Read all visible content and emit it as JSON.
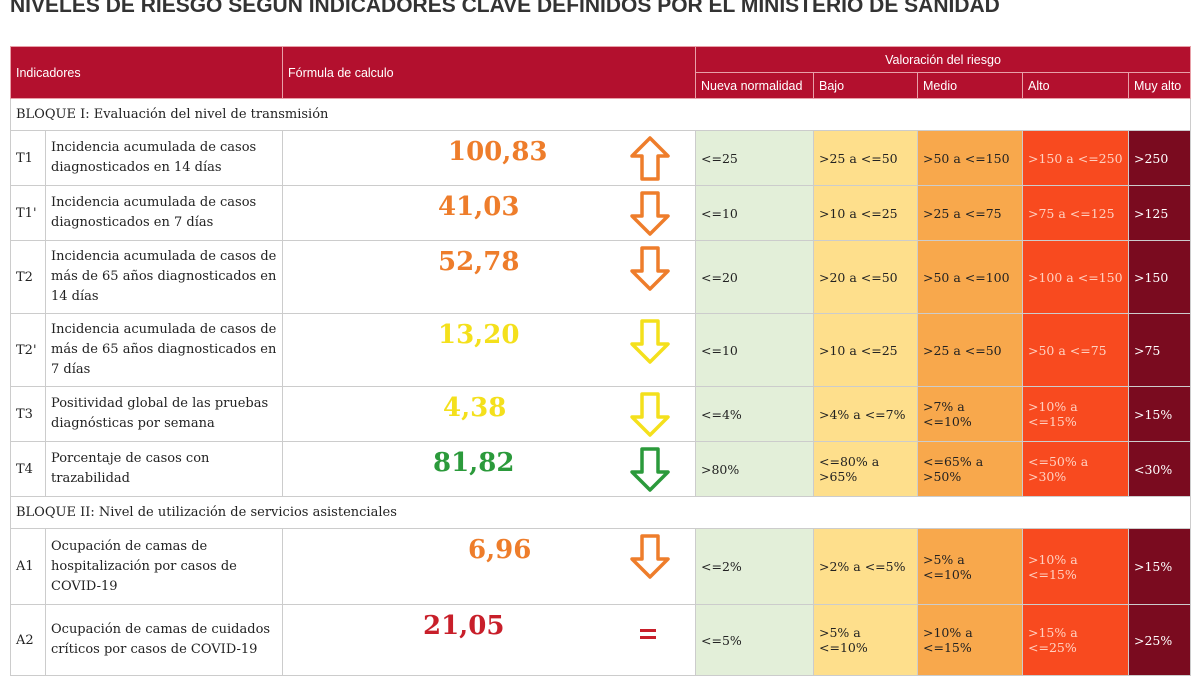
{
  "title": "NIVELES DE RIESGO SEGÚN INDICADORES CLAVE DEFINIDOS POR EL MINISTERIO DE SANIDAD",
  "table": {
    "headers": {
      "indicadores": "Indicadores",
      "formula": "Fórmula de calculo",
      "valoracion": "Valoración del riesgo",
      "levels": [
        "Nueva normalidad",
        "Bajo",
        "Medio",
        "Alto",
        "Muy alto"
      ]
    },
    "blocks": [
      {
        "title": "BLOQUE I: Evaluación del nivel de transmisión",
        "rows": [
          {
            "code": "T1",
            "indicator": "Incidencia acumulada de casos diagnosticados en 14 días",
            "value": "100,83",
            "levels": [
              "<=25",
              ">25 a <=50",
              ">50 a <=150",
              ">150 a <=250",
              ">250"
            ]
          },
          {
            "code": "T1'",
            "indicator": "Incidencia acumulada de casos diagnosticados en 7 días",
            "value": "41,03",
            "levels": [
              "<=10",
              ">10 a <=25",
              ">25 a <=75",
              ">75 a <=125",
              ">125"
            ]
          },
          {
            "code": "T2",
            "indicator": "Incidencia acumulada de casos de más de 65 años diagnosticados en 14 días",
            "value": "52,78",
            "levels": [
              "<=20",
              ">20 a <=50",
              ">50 a <=100",
              ">100 a <=150",
              ">150"
            ]
          },
          {
            "code": "T2'",
            "indicator": "Incidencia acumulada de casos de más de 65 años diagnosticados en 7 días",
            "value": "13,20",
            "levels": [
              "<=10",
              ">10 a <=25",
              ">25 a <=50",
              ">50 a <=75",
              ">75"
            ]
          },
          {
            "code": "T3",
            "indicator": "Positividad global de las pruebas diagnósticas por semana",
            "value": "4,38",
            "levels": [
              "<=4%",
              ">4% a <=7%",
              ">7% a <=10%",
              ">10% a <=15%",
              ">15%"
            ]
          },
          {
            "code": "T4",
            "indicator": "Porcentaje de casos con trazabilidad",
            "value": "81,82",
            "levels": [
              ">80%",
              "<=80% a >65%",
              "<=65% a >50%",
              "<=50% a >30%",
              "<30%"
            ]
          }
        ]
      },
      {
        "title": "BLOQUE II: Nivel de utilización de servicios asistenciales",
        "rows": [
          {
            "code": "A1",
            "indicator": "Ocupación de camas de hospitalización por casos de COVID-19",
            "value": "6,96",
            "levels": [
              "<=2%",
              ">2% a <=5%",
              ">5% a <=10%",
              ">10% a <=15%",
              ">15%"
            ]
          },
          {
            "code": "A2",
            "indicator": "Ocupación de camas de cuidados críticos por casos de COVID-19",
            "value": "21,05",
            "levels": [
              "<=5%",
              ">5% a <=10%",
              ">10% a <=15%",
              ">15% a <=25%",
              ">25%"
            ]
          }
        ]
      }
    ]
  }
}
